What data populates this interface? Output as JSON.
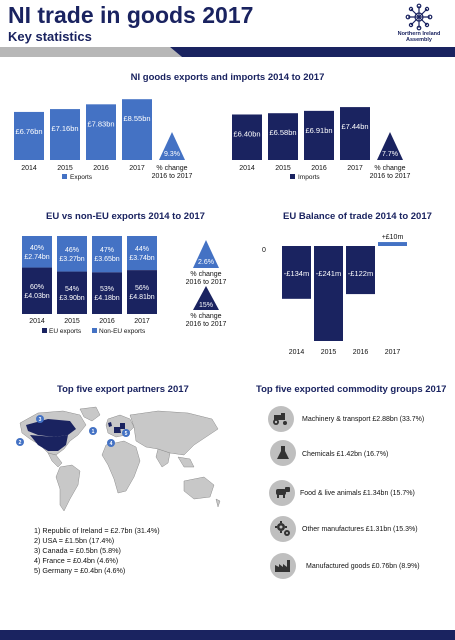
{
  "header": {
    "title": "NI trade in goods 2017",
    "subtitle": "Key statistics",
    "logo_text": "Northern Ireland Assembly"
  },
  "colors": {
    "navy": "#1a2360",
    "mid_blue": "#4472c4",
    "light_grey": "#bfbfbf"
  },
  "sections": {
    "exports_imports_title": "NI goods exports and imports 2014 to 2017",
    "eu_title": "EU vs non-EU exports 2014 to 2017",
    "balance_title": "EU Balance of trade 2014 to 2017",
    "partners_title": "Top five export partners 2017",
    "commodities_title": "Top five exported commodity groups 2017"
  },
  "chart_data": [
    {
      "type": "bar",
      "categories": [
        "2014",
        "2015",
        "2016",
        "2017"
      ],
      "values": [
        6.76,
        7.16,
        7.83,
        8.55
      ],
      "data_labels": [
        "£6.76bn",
        "£7.16bn",
        "£7.83bn",
        "£8.55bn"
      ],
      "legend": "Exports",
      "change_value": "9.3%",
      "change_label": [
        "% change",
        "2016 to 2017"
      ]
    },
    {
      "type": "bar",
      "categories": [
        "2014",
        "2015",
        "2016",
        "2017"
      ],
      "values": [
        6.4,
        6.58,
        6.91,
        7.44
      ],
      "data_labels": [
        "£6.40bn",
        "£6.58bn",
        "£6.91bn",
        "£7.44bn"
      ],
      "legend": "Imports",
      "change_value": "7.7%",
      "change_label": [
        "% change",
        "2016 to 2017"
      ]
    },
    {
      "type": "bar",
      "stacked": true,
      "categories": [
        "2014",
        "2015",
        "2016",
        "2017"
      ],
      "series": [
        {
          "name": "EU exports",
          "values": [
            4.03,
            3.9,
            4.18,
            4.81
          ],
          "percent_labels": [
            "60%",
            "54%",
            "53%",
            "56%"
          ],
          "value_labels": [
            "£4.03bn",
            "£3.90bn",
            "£4.18bn",
            "£4.81bn"
          ]
        },
        {
          "name": "Non-EU exports",
          "values": [
            2.74,
            3.27,
            3.65,
            3.74
          ],
          "percent_labels": [
            "40%",
            "46%",
            "47%",
            "44%"
          ],
          "value_labels": [
            "£2.74bn",
            "£3.27bn",
            "£3.65bn",
            "£3.74bn"
          ]
        }
      ],
      "changes": [
        {
          "value": "2.6%",
          "label": [
            "% change",
            "2016 to 2017"
          ]
        },
        {
          "value": "15%",
          "label": [
            "% change",
            "2016 to 2017"
          ]
        }
      ]
    },
    {
      "type": "bar",
      "categories": [
        "2014",
        "2015",
        "2016",
        "2017"
      ],
      "values": [
        -134,
        -241,
        -122,
        10
      ],
      "data_labels": [
        "-£134m",
        "-£241m",
        "-£122m",
        "+£10m"
      ],
      "zero_label": "0"
    }
  ],
  "map": {
    "markers": [
      "1",
      "2",
      "3",
      "4",
      "5"
    ],
    "list": [
      "1) Republic of Ireland = £2.7bn (31.4%)",
      "2) USA = £1.5bn (17.4%)",
      "3) Canada = £0.5bn (5.8%)",
      "4) France = £0.4bn (4.6%)",
      "5) Germany = £0.4bn (4.6%)"
    ]
  },
  "commodities": [
    {
      "icon": "tractor-icon",
      "label": "Machinery & transport £2.88bn (33.7%)"
    },
    {
      "icon": "flask-icon",
      "label": "Chemicals £1.42bn (16.7%)"
    },
    {
      "icon": "cow-icon",
      "label": "Food & live animals £1.34bn (15.7%)"
    },
    {
      "icon": "gears-icon",
      "label": "Other manufactures £1.31bn (15.3%)"
    },
    {
      "icon": "factory-icon",
      "label": "Manufactured goods £0.76bn (8.9%)"
    }
  ]
}
